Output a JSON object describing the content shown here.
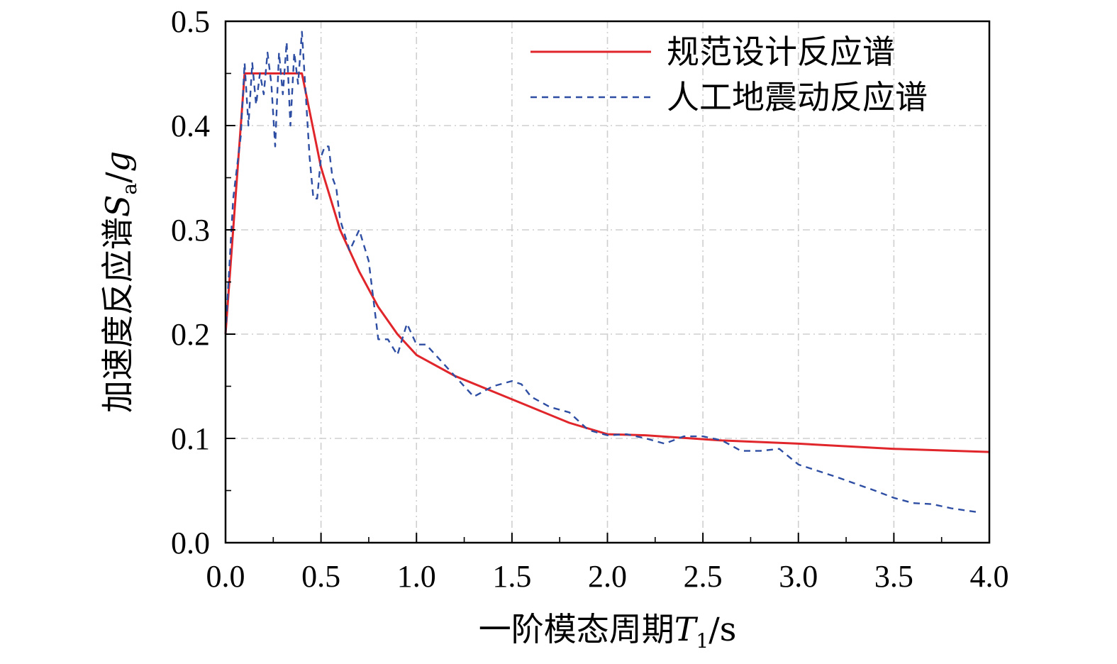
{
  "chart_data": {
    "type": "line",
    "xlabel": {
      "prefix": "一阶模态周期",
      "var": "T",
      "sub": "1",
      "suffix": "/s"
    },
    "ylabel": {
      "prefix": "加速度反应谱",
      "var": "S",
      "sub": "a",
      "mid": "/",
      "var2": "g"
    },
    "xlim": [
      0,
      4.0
    ],
    "ylim": [
      0,
      0.5
    ],
    "x_ticks": [
      0.0,
      0.5,
      1.0,
      1.5,
      2.0,
      2.5,
      3.0,
      3.5,
      4.0
    ],
    "x_tick_labels": [
      "0.0",
      "0.5",
      "1.0",
      "1.5",
      "2.0",
      "2.5",
      "3.0",
      "3.5",
      "4.0"
    ],
    "y_ticks": [
      0.0,
      0.1,
      0.2,
      0.3,
      0.4,
      0.5
    ],
    "y_tick_labels": [
      "0.0",
      "0.1",
      "0.2",
      "0.3",
      "0.4",
      "0.5"
    ],
    "grid": true,
    "legend_position": "top-right",
    "series": [
      {
        "name": "规范设计反应谱",
        "color": "#e0262b",
        "style": "solid",
        "x": [
          0.0,
          0.1,
          0.4,
          0.5,
          0.6,
          0.7,
          0.8,
          0.9,
          1.0,
          1.2,
          1.4,
          1.6,
          1.8,
          2.0,
          2.2,
          2.6,
          3.0,
          3.5,
          4.0
        ],
        "y": [
          0.2,
          0.45,
          0.45,
          0.36,
          0.3,
          0.26,
          0.226,
          0.2,
          0.18,
          0.16,
          0.145,
          0.13,
          0.115,
          0.104,
          0.103,
          0.098,
          0.095,
          0.09,
          0.087
        ]
      },
      {
        "name": "人工地震动反应谱",
        "color": "#2e4ea3",
        "style": "dashed",
        "x": [
          0.0,
          0.04,
          0.08,
          0.1,
          0.12,
          0.14,
          0.16,
          0.18,
          0.2,
          0.22,
          0.24,
          0.26,
          0.28,
          0.3,
          0.32,
          0.34,
          0.36,
          0.38,
          0.4,
          0.42,
          0.44,
          0.46,
          0.48,
          0.5,
          0.52,
          0.54,
          0.56,
          0.58,
          0.6,
          0.65,
          0.7,
          0.75,
          0.8,
          0.85,
          0.9,
          0.95,
          1.0,
          1.05,
          1.1,
          1.2,
          1.3,
          1.4,
          1.5,
          1.55,
          1.6,
          1.7,
          1.8,
          1.9,
          2.0,
          2.1,
          2.2,
          2.3,
          2.4,
          2.5,
          2.6,
          2.7,
          2.8,
          2.9,
          3.0,
          3.2,
          3.4,
          3.5,
          3.6,
          3.7,
          3.8,
          3.95
        ],
        "y": [
          0.2,
          0.33,
          0.39,
          0.46,
          0.4,
          0.46,
          0.42,
          0.45,
          0.43,
          0.47,
          0.44,
          0.38,
          0.47,
          0.43,
          0.48,
          0.4,
          0.47,
          0.44,
          0.49,
          0.43,
          0.37,
          0.33,
          0.33,
          0.37,
          0.38,
          0.38,
          0.35,
          0.34,
          0.31,
          0.28,
          0.3,
          0.27,
          0.195,
          0.195,
          0.18,
          0.21,
          0.19,
          0.19,
          0.18,
          0.16,
          0.14,
          0.15,
          0.155,
          0.152,
          0.14,
          0.13,
          0.125,
          0.108,
          0.103,
          0.104,
          0.1,
          0.095,
          0.102,
          0.102,
          0.098,
          0.088,
          0.088,
          0.09,
          0.075,
          0.063,
          0.05,
          0.043,
          0.038,
          0.037,
          0.033,
          0.029
        ]
      }
    ]
  }
}
